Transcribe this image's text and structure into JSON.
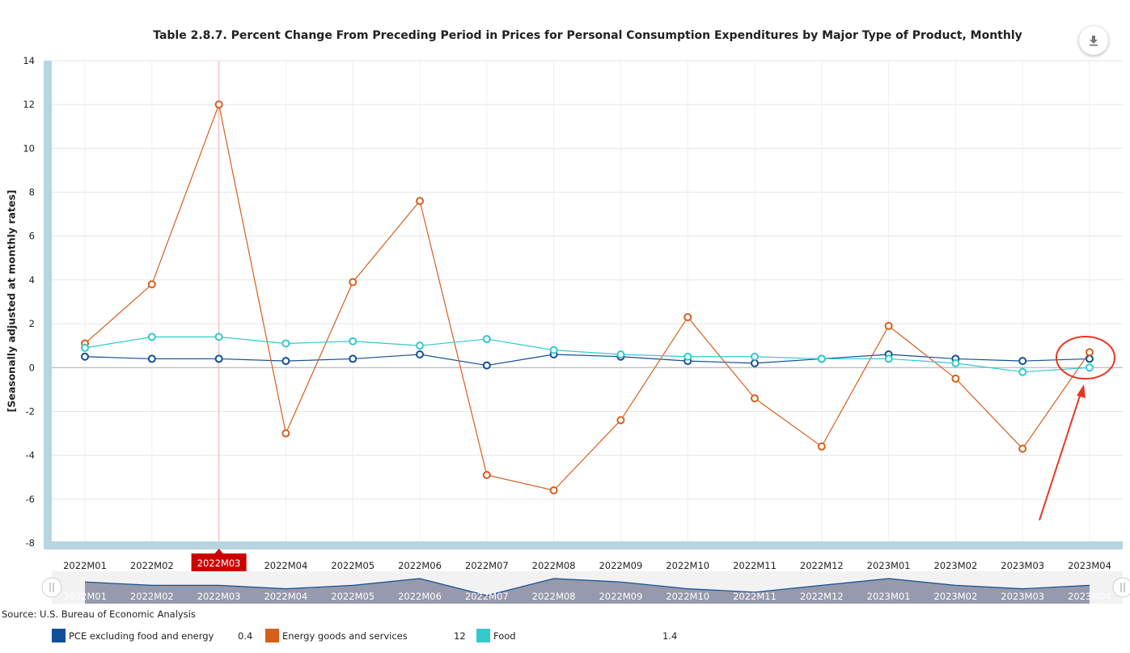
{
  "chart_data": {
    "type": "line",
    "title": "Table 2.8.7. Percent Change From Preceding Period in Prices for Personal Consumption Expenditures by Major Type of Product, Monthly",
    "xlabel": "",
    "ylabel": "[Seasonally adjusted at monthly rates]",
    "ylim": [
      -8,
      14
    ],
    "y_ticks": [
      14,
      12,
      10,
      8,
      6,
      4,
      2,
      0,
      -2,
      -4,
      -6,
      -8
    ],
    "grid": true,
    "categories": [
      "2022M01",
      "2022M02",
      "2022M03",
      "2022M04",
      "2022M05",
      "2022M06",
      "2022M07",
      "2022M08",
      "2022M09",
      "2022M10",
      "2022M11",
      "2022M12",
      "2023M01",
      "2023M02",
      "2023M03",
      "2023M04"
    ],
    "highlighted_category": "2022M03",
    "series": [
      {
        "name": "PCE excluding food and energy",
        "color": "#114f96",
        "values": [
          0.5,
          0.4,
          0.4,
          0.3,
          0.4,
          0.6,
          0.1,
          0.6,
          0.5,
          0.3,
          0.2,
          0.4,
          0.6,
          0.4,
          0.3,
          0.4
        ]
      },
      {
        "name": "Energy goods and services",
        "color": "#d65f1c",
        "values": [
          1.1,
          3.8,
          12.0,
          -3.0,
          3.9,
          7.6,
          -4.9,
          -5.6,
          -2.4,
          2.3,
          -1.4,
          -3.6,
          1.9,
          -0.5,
          -3.7,
          0.7
        ]
      },
      {
        "name": "Food",
        "color": "#33c9cd",
        "values": [
          0.9,
          1.4,
          1.4,
          1.1,
          1.2,
          1.0,
          1.3,
          0.8,
          0.6,
          0.5,
          0.5,
          0.4,
          0.4,
          0.2,
          -0.2,
          0.0
        ]
      }
    ],
    "navigator_series": "PCE excluding food and energy",
    "legend": {
      "position": "bottom-left",
      "hover_values": [
        "0.4",
        "12",
        "1.4"
      ]
    },
    "annotation": "red circle and arrow around 2023M04",
    "source": "Source: U.S. Bureau of Economic Analysis"
  },
  "colors": {
    "axis_band": "#b7d5e0",
    "highlight_label_bg": "#cc0000",
    "annotation_red": "#e8371f",
    "navigator_fill": "#9799ad",
    "navigator_line": "#114f96"
  },
  "icons": {
    "download": "download-icon"
  }
}
